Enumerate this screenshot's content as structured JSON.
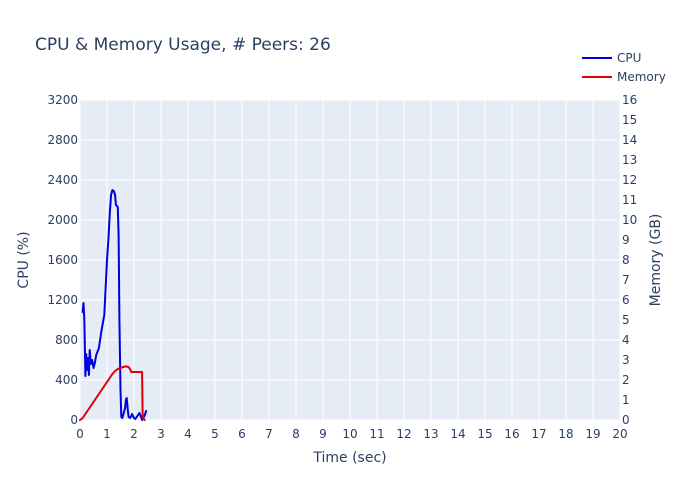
{
  "chart_data": {
    "type": "line",
    "title": "CPU & Memory Usage, # Peers: 26",
    "xlabel": "Time (sec)",
    "ylabel": "CPU (%)",
    "y2label": "Memory (GB)",
    "xlim": [
      0,
      20
    ],
    "ylim": [
      0,
      3200
    ],
    "y2lim": [
      0,
      16
    ],
    "x_ticks": [
      0,
      1,
      2,
      3,
      4,
      5,
      6,
      7,
      8,
      9,
      10,
      11,
      12,
      13,
      14,
      15,
      16,
      17,
      18,
      19,
      20
    ],
    "y_ticks": [
      0,
      400,
      800,
      1200,
      1600,
      2000,
      2400,
      2800,
      3200
    ],
    "y2_ticks": [
      0,
      1,
      2,
      3,
      4,
      5,
      6,
      7,
      8,
      9,
      10,
      11,
      12,
      13,
      14,
      15,
      16
    ],
    "grid": true,
    "legend_position": "top-right",
    "series": [
      {
        "name": "CPU",
        "color": "#0000dd",
        "axis": "y",
        "x": [
          0.1,
          0.13,
          0.16,
          0.2,
          0.23,
          0.26,
          0.3,
          0.33,
          0.36,
          0.4,
          0.45,
          0.5,
          0.55,
          0.6,
          0.7,
          0.8,
          0.9,
          1.0,
          1.05,
          1.1,
          1.15,
          1.2,
          1.25,
          1.3,
          1.33,
          1.37,
          1.4,
          1.43,
          1.46,
          1.5,
          1.53,
          1.57,
          1.6,
          1.63,
          1.67,
          1.7,
          1.73,
          1.77,
          1.8,
          1.85,
          1.9,
          1.93,
          1.96,
          2.0,
          2.05,
          2.1,
          2.2,
          2.25,
          2.3,
          2.35,
          2.4,
          2.45
        ],
        "values": [
          1080,
          1170,
          1000,
          440,
          660,
          500,
          620,
          450,
          700,
          560,
          600,
          520,
          570,
          650,
          720,
          900,
          1050,
          1600,
          1800,
          2050,
          2250,
          2300,
          2290,
          2250,
          2150,
          2140,
          2130,
          1850,
          1000,
          300,
          30,
          20,
          50,
          80,
          120,
          200,
          220,
          100,
          30,
          20,
          40,
          60,
          40,
          20,
          10,
          30,
          70,
          40,
          0,
          20,
          50,
          90
        ]
      },
      {
        "name": "Memory",
        "color": "#dd0000",
        "axis": "y2",
        "x": [
          0.0,
          0.1,
          0.2,
          0.3,
          0.4,
          0.5,
          0.6,
          0.7,
          0.8,
          0.9,
          1.0,
          1.1,
          1.2,
          1.3,
          1.4,
          1.5,
          1.6,
          1.7,
          1.8,
          1.85,
          1.9,
          2.0,
          2.1,
          2.2,
          2.3,
          2.32,
          2.35,
          2.4
        ],
        "values": [
          0.0,
          0.1,
          0.3,
          0.5,
          0.7,
          0.9,
          1.1,
          1.3,
          1.5,
          1.7,
          1.9,
          2.1,
          2.3,
          2.45,
          2.55,
          2.6,
          2.65,
          2.68,
          2.65,
          2.55,
          2.4,
          2.4,
          2.4,
          2.4,
          2.4,
          0.2,
          0.05,
          0.0
        ]
      }
    ]
  }
}
